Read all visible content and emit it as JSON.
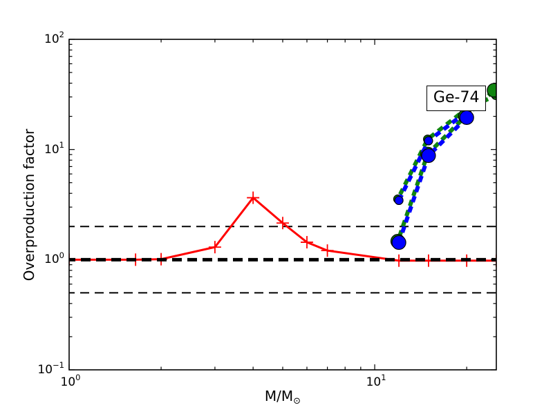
{
  "chart_data": {
    "type": "line",
    "title": "",
    "ylabel": "Overproduction factor",
    "xlabel": {
      "main": "M/M",
      "sub": "⊙"
    },
    "xscale": "log",
    "yscale": "log",
    "xlim": [
      1,
      25
    ],
    "ylim": [
      0.1,
      100
    ],
    "grid": false,
    "x_axis": {
      "major": [
        {
          "value": 1,
          "base": "10",
          "exp": "0"
        },
        {
          "value": 10,
          "base": "10",
          "exp": "1"
        }
      ],
      "minor": [
        2,
        3,
        4,
        5,
        6,
        7,
        8,
        9,
        20
      ]
    },
    "y_axis": {
      "major": [
        {
          "value": 0.1,
          "base": "10",
          "exp": "−1"
        },
        {
          "value": 1,
          "base": "10",
          "exp": "0"
        },
        {
          "value": 10,
          "base": "10",
          "exp": "1"
        },
        {
          "value": 100,
          "base": "10",
          "exp": "2"
        }
      ]
    },
    "reference_lines": [
      {
        "y": 2.0,
        "color": "#000000",
        "style": "dashed",
        "lw": 2,
        "layer": "back"
      },
      {
        "y": 0.5,
        "color": "#000000",
        "style": "dashed",
        "lw": 2,
        "layer": "back"
      },
      {
        "y": 1.0,
        "color": "#000000",
        "style": "dashed",
        "lw": 5,
        "layer": "mid"
      }
    ],
    "annotation": {
      "text": "Ge-74",
      "x": 18.5,
      "y": 29
    },
    "series": [
      {
        "name": "low-mass-model-red",
        "color": "#ff0000",
        "line": "solid",
        "lw": 3,
        "marker": "plus",
        "marker_size": 9,
        "x": [
          1.0,
          1.65,
          2.0,
          3.0,
          4.0,
          5.0,
          6.0,
          7.0,
          12.0,
          15.0,
          20.0,
          25.0
        ],
        "y": [
          1.0,
          1.0,
          1.01,
          1.3,
          3.65,
          2.15,
          1.44,
          1.21,
          0.98,
          0.98,
          0.98,
          0.98
        ]
      },
      {
        "name": "massive-model-upper-green",
        "color": "#108510",
        "line": "dashed",
        "lw": 6,
        "dash_offset": 8,
        "marker": "circle",
        "marker_size": 6,
        "x": [
          11.9,
          14.9,
          19.8,
          24.9
        ],
        "y": [
          3.55,
          12.4,
          23.0,
          31.0
        ]
      },
      {
        "name": "massive-model-lower-green",
        "color": "#108510",
        "line": "dashed",
        "lw": 6,
        "dash_offset": 8,
        "marker": "circle",
        "marker_size": 10,
        "x": [
          11.9,
          14.9,
          19.8,
          24.6
        ],
        "y": [
          1.47,
          9.1,
          20.0,
          34.5
        ]
      },
      {
        "name": "massive-model-upper-blue",
        "color": "#0000ff",
        "line": "dashed",
        "lw": 6,
        "dash_offset": 0,
        "marker": "circle",
        "marker_size": 6,
        "x": [
          12.0,
          15.0,
          20.0
        ],
        "y": [
          3.45,
          12.0,
          22.0
        ]
      },
      {
        "name": "massive-model-lower-blue",
        "color": "#0000ff",
        "line": "dashed",
        "lw": 6,
        "dash_offset": 0,
        "marker": "circle",
        "marker_size": 10,
        "x": [
          12.0,
          15.0,
          20.0
        ],
        "y": [
          1.43,
          8.8,
          19.5
        ]
      }
    ]
  }
}
